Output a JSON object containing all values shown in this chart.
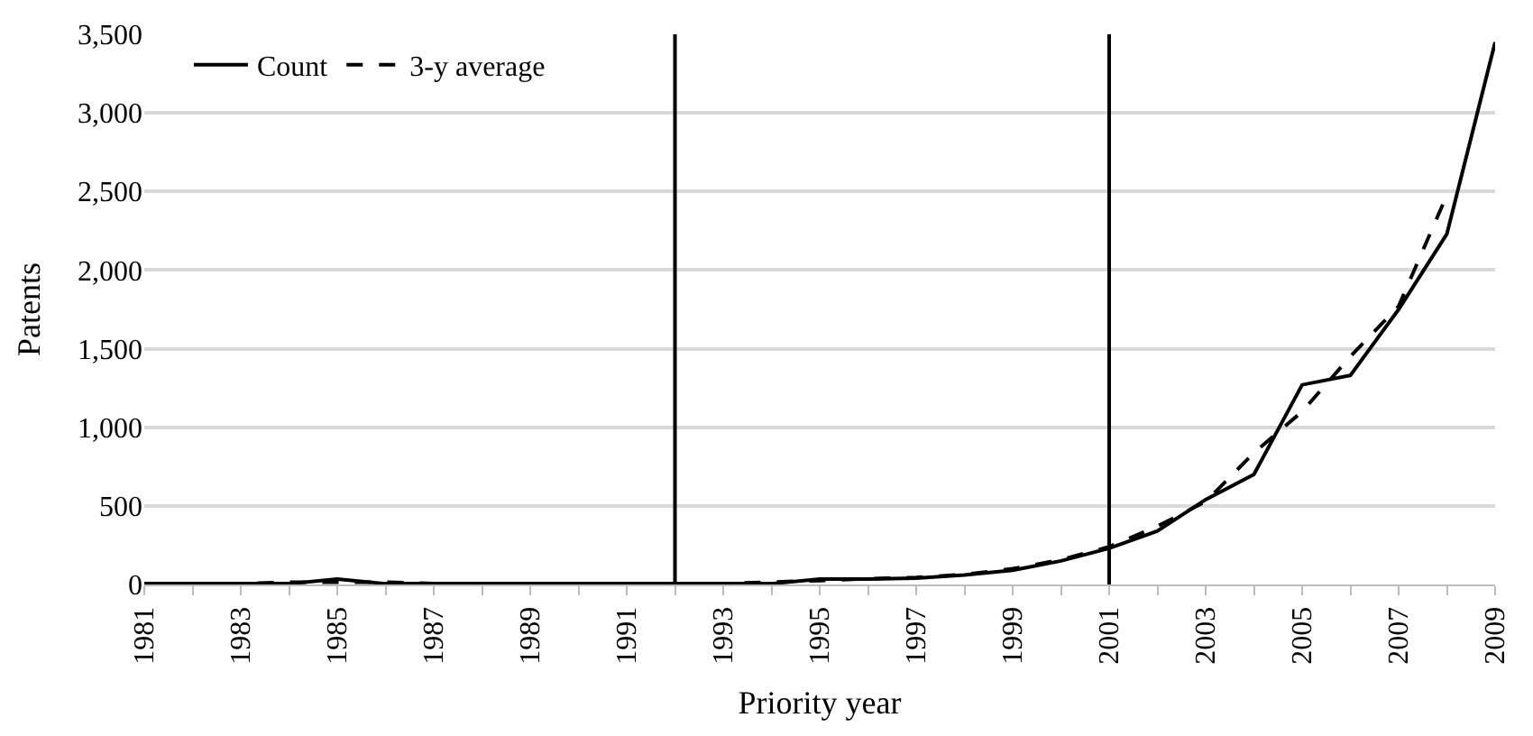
{
  "chart_data": {
    "type": "line",
    "xlabel": "Priority year",
    "ylabel": "Patents",
    "x": [
      1981,
      1982,
      1983,
      1984,
      1985,
      1986,
      1987,
      1988,
      1989,
      1990,
      1991,
      1992,
      1993,
      1994,
      1995,
      1996,
      1997,
      1998,
      1999,
      2000,
      2001,
      2002,
      2003,
      2004,
      2005,
      2006,
      2007,
      2008,
      2009
    ],
    "series": [
      {
        "name": "Count",
        "color": "#000000",
        "line_style": "solid",
        "values": [
          5,
          5,
          5,
          5,
          35,
          5,
          5,
          5,
          5,
          5,
          5,
          5,
          5,
          5,
          35,
          35,
          40,
          60,
          90,
          150,
          230,
          340,
          540,
          700,
          1270,
          1330,
          1750,
          2230,
          3450
        ]
      },
      {
        "name": "3-y average",
        "color": "#000000",
        "line_style": "dashed",
        "values": [
          null,
          5,
          5,
          15,
          15,
          15,
          5,
          5,
          5,
          5,
          5,
          5,
          5,
          15,
          25,
          37,
          45,
          63,
          100,
          157,
          240,
          370,
          527,
          837,
          1100,
          1450,
          1770,
          2477,
          null
        ]
      }
    ],
    "xlim": [
      1981,
      2009
    ],
    "xticks": [
      1981,
      1983,
      1985,
      1987,
      1989,
      1991,
      1993,
      1995,
      1997,
      1999,
      2001,
      2003,
      2005,
      2007,
      2009
    ],
    "ylim": [
      0,
      3500
    ],
    "yticks": [
      {
        "value": 0,
        "label": "0"
      },
      {
        "value": 500,
        "label": "500"
      },
      {
        "value": 1000,
        "label": "1,000"
      },
      {
        "value": 1500,
        "label": "1,500"
      },
      {
        "value": 2000,
        "label": "2,000"
      },
      {
        "value": 2500,
        "label": "2,500"
      },
      {
        "value": 3000,
        "label": "3,000"
      },
      {
        "value": 3500,
        "label": "3,500"
      }
    ],
    "ref_lines": [
      {
        "axis": "x",
        "value": 1992,
        "color": "#000000"
      },
      {
        "axis": "x",
        "value": 2001,
        "color": "#000000"
      }
    ],
    "grid": "y",
    "legend": "top left",
    "marker": "none"
  }
}
